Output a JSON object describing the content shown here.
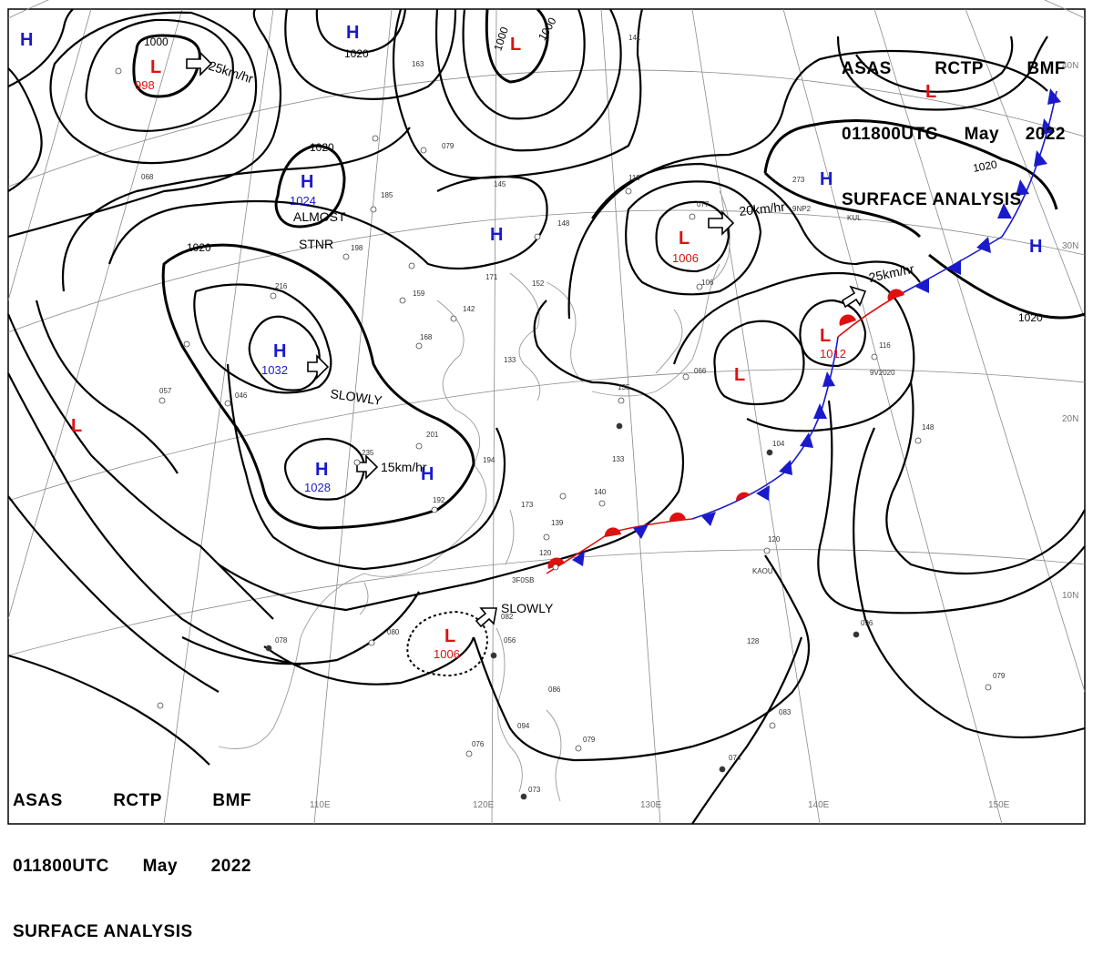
{
  "header": {
    "station": "ASAS",
    "center": "RCTP",
    "agency": "BMF",
    "time": "011800UTC",
    "month": "May",
    "year": "2022",
    "product": "SURFACE ANALYSIS"
  },
  "colors": {
    "high": "#1a1acc",
    "low": "#e01010",
    "warm_front": "#e01010",
    "cold_front": "#1a1acc",
    "isobar": "#000000",
    "grid": "#8a8a8a"
  },
  "lon_labels": [
    "110E",
    "120E",
    "130E",
    "140E",
    "150E"
  ],
  "lat_labels": [
    "40N",
    "30N",
    "20N",
    "10N"
  ],
  "isobar_labels": [
    "1000",
    "1020",
    "1020",
    "1020",
    "1000",
    "1000",
    "1020",
    "1020"
  ],
  "pressure_systems": [
    {
      "type": "H",
      "value": ""
    },
    {
      "type": "L",
      "value": "998"
    },
    {
      "type": "H",
      "value": "1020"
    },
    {
      "type": "L",
      "value": ""
    },
    {
      "type": "L",
      "value": ""
    },
    {
      "type": "H",
      "value": "1024"
    },
    {
      "type": "H",
      "value": ""
    },
    {
      "type": "L",
      "value": "1006"
    },
    {
      "type": "H",
      "value": ""
    },
    {
      "type": "H",
      "value": ""
    },
    {
      "type": "H",
      "value": "1032"
    },
    {
      "type": "L",
      "value": "1012"
    },
    {
      "type": "L",
      "value": ""
    },
    {
      "type": "H",
      "value": "1028"
    },
    {
      "type": "H",
      "value": ""
    },
    {
      "type": "L",
      "value": ""
    },
    {
      "type": "L",
      "value": "1006"
    }
  ],
  "motions": [
    "25km/hr",
    "ALMOST",
    "STNR",
    "20km/hr",
    "25km/hr",
    "SLOWLY",
    "15km/hr",
    "SLOWLY"
  ],
  "station_plots": [
    "163",
    "079",
    "145",
    "185",
    "148",
    "171",
    "152",
    "159",
    "168",
    "142",
    "133",
    "135",
    "201",
    "194",
    "192",
    "173",
    "139",
    "140",
    "133",
    "120",
    "078",
    "056",
    "076",
    "079",
    "073",
    "082",
    "086",
    "094",
    "120",
    "104",
    "148",
    "116",
    "096",
    "079",
    "074",
    "066",
    "273",
    "216",
    "235",
    "198",
    "046",
    "057",
    "068",
    "118",
    "106",
    "128",
    "141",
    "080",
    "083",
    "077"
  ],
  "station_ids": [
    "3F0SB",
    "KAOU",
    "9V2020",
    "9NP2",
    "KUL"
  ]
}
